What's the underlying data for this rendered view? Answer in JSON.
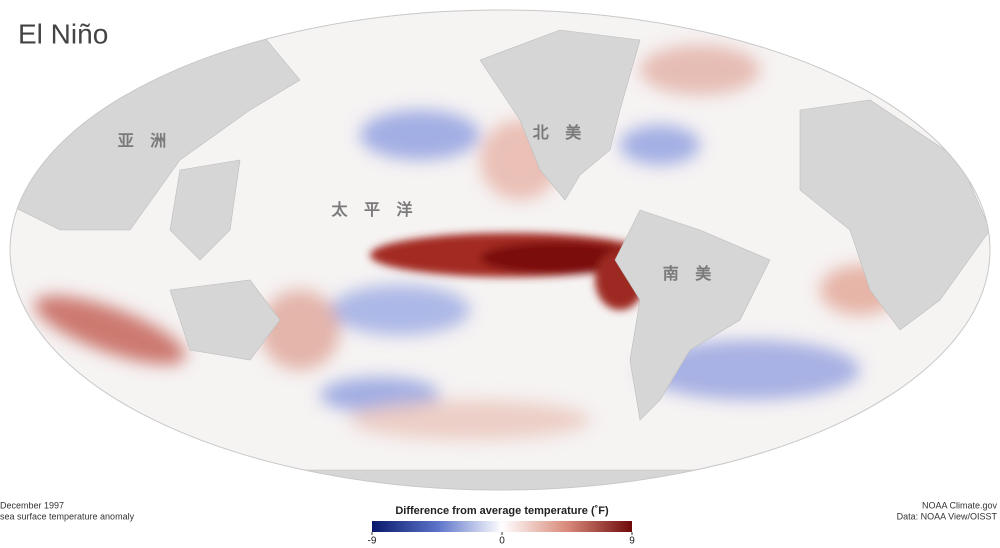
{
  "title": "El Niño",
  "region_labels": [
    "亚 洲",
    "北 美",
    "太 平 洋",
    "南 美"
  ],
  "date": "December 1997",
  "subtitle": "sea surface temperature anomaly",
  "legend": {
    "title": "Difference from average temperature (˚F)",
    "range": [
      -9,
      9
    ],
    "ticks": [
      -9,
      0,
      9
    ]
  },
  "credits": [
    "NOAA Climate.gov",
    "Data: NOAA View/OISST"
  ]
}
